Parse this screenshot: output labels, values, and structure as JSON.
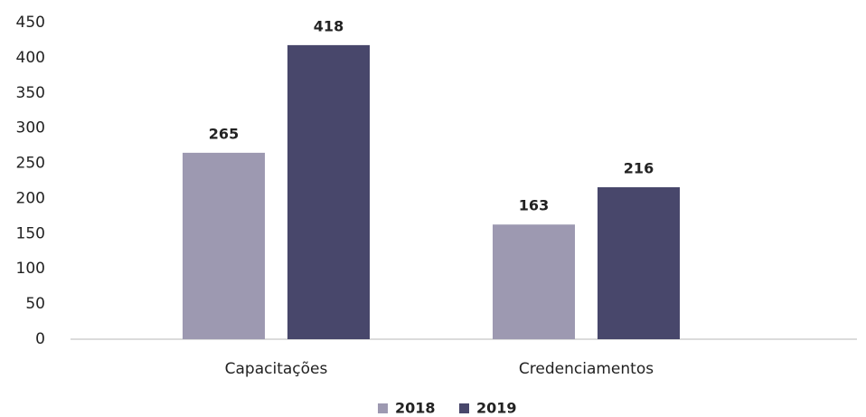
{
  "chart_data": {
    "type": "bar",
    "categories": [
      "Capacitações",
      "Credenciamentos"
    ],
    "series": [
      {
        "name": "2018",
        "color": "#9d99b1",
        "values": [
          265,
          163
        ]
      },
      {
        "name": "2019",
        "color": "#48476b",
        "values": [
          418,
          216
        ]
      }
    ],
    "ylim": [
      0,
      450
    ],
    "yticks": [
      0,
      50,
      100,
      150,
      200,
      250,
      300,
      350,
      400,
      450
    ],
    "grid": false,
    "legend": "bottom"
  }
}
